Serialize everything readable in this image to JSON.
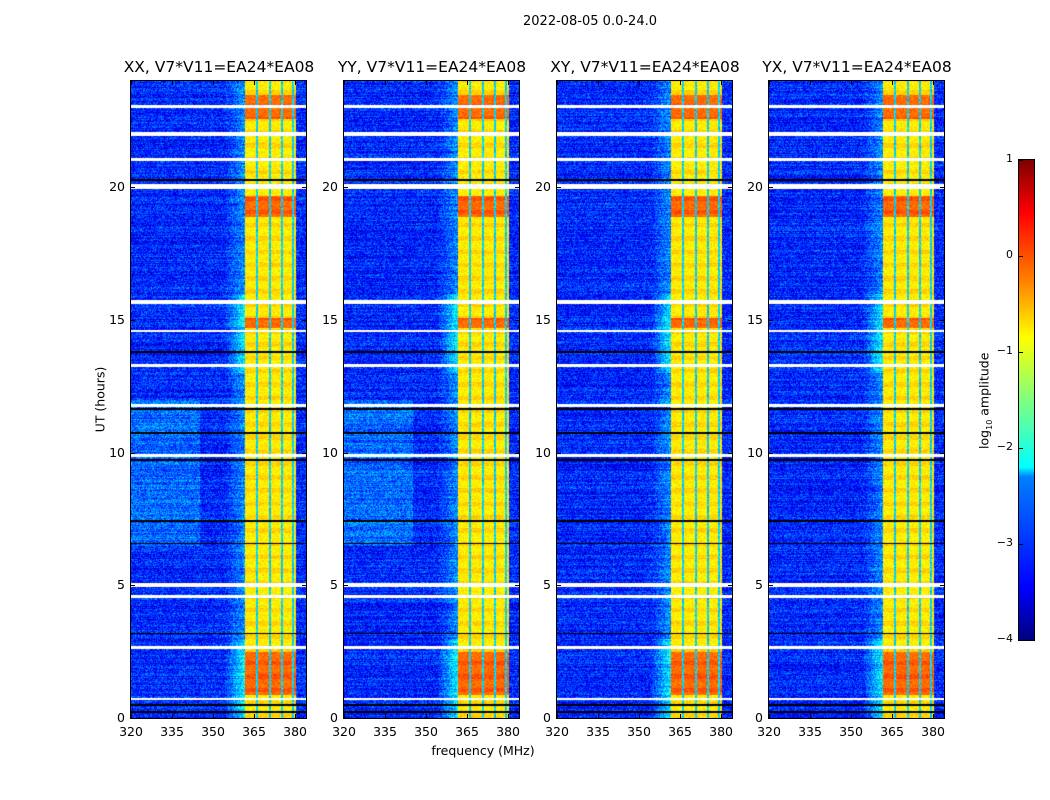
{
  "figure_title": "2022-08-05 0.0-24.0",
  "chart_data": {
    "type": "heatmap",
    "title": "2022-08-05 0.0-24.0",
    "xlabel": "frequency (MHz)",
    "ylabel": "UT (hours)",
    "xlim": [
      320,
      384
    ],
    "ylim": [
      0,
      24
    ],
    "xticks": [
      "320",
      "335",
      "350",
      "365",
      "380"
    ],
    "xtick_values": [
      320,
      335,
      350,
      365,
      380
    ],
    "yticks": [
      "0",
      "5",
      "10",
      "15",
      "20"
    ],
    "ytick_values": [
      0,
      5,
      10,
      15,
      20
    ],
    "panels": [
      {
        "title": "XX, V7*V11=EA24*EA08",
        "pol": "XX",
        "bright_left": true
      },
      {
        "title": "YY, V7*V11=EA24*EA08",
        "pol": "YY",
        "bright_left": true
      },
      {
        "title": "XY, V7*V11=EA24*EA08",
        "pol": "XY",
        "bright_left": false
      },
      {
        "title": "YX, V7*V11=EA24*EA08",
        "pol": "YX",
        "bright_left": false
      }
    ],
    "rfi_band_mhz": [
      361.5,
      380
    ],
    "rfi_band_gaps_mhz": [
      366,
      370.5,
      375,
      379
    ],
    "rfi_band_level_log10": -0.8,
    "rfi_strong_hours": [
      [
        0.9,
        2.5
      ],
      [
        14.7,
        15.1
      ],
      [
        18.9,
        19.7
      ],
      [
        22.6,
        23.5
      ]
    ],
    "background_level_log10": -3.2,
    "flagged_hours": [
      [
        23.0,
        23.1
      ],
      [
        21.95,
        22.1
      ],
      [
        21.0,
        21.1
      ],
      [
        19.95,
        20.15
      ],
      [
        15.6,
        15.75
      ],
      [
        14.55,
        14.65
      ],
      [
        13.25,
        13.35
      ],
      [
        11.75,
        11.85
      ],
      [
        9.85,
        9.95
      ],
      [
        4.95,
        5.1
      ],
      [
        4.55,
        4.65
      ],
      [
        2.6,
        2.72
      ],
      [
        0.68,
        0.78
      ]
    ],
    "nodata_hours": [
      20.3,
      11.65,
      10.75,
      9.75,
      7.45,
      6.6,
      0.5,
      0.25,
      13.8,
      3.2
    ],
    "colorbar": {
      "label": "log10 amplitude",
      "label_main": "log",
      "label_sub": "10",
      "label_rest": " amplitude",
      "range": [
        -4,
        1
      ],
      "ticks": [
        "1",
        "0",
        "−1",
        "−2",
        "−3",
        "−4"
      ],
      "tick_values": [
        1,
        0,
        -1,
        -2,
        -3,
        -4
      ],
      "colormap": "jet"
    }
  }
}
